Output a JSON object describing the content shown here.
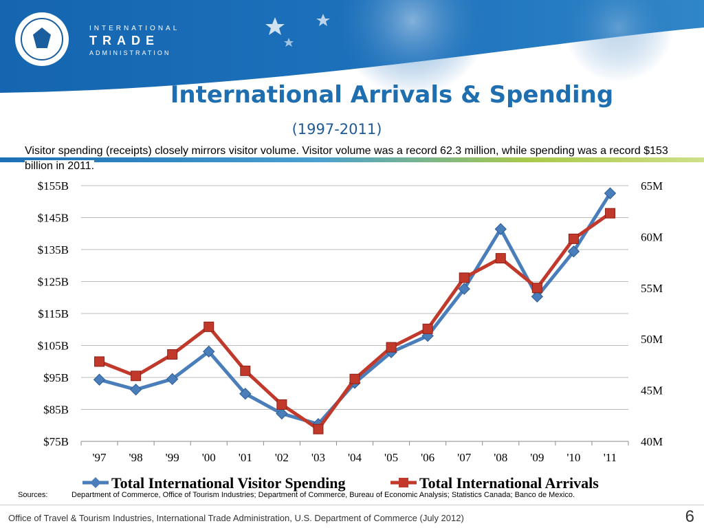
{
  "header": {
    "org_line1": "INTERNATIONAL",
    "org_line2": "TRADE",
    "org_line3": "ADMINISTRATION"
  },
  "colors": {
    "spending": "#4a7ebb",
    "arrivals": "#c0392b",
    "title": "#1f6fb0"
  },
  "slide": {
    "title": "International Arrivals & Spending",
    "subtitle": "(1997-2011)",
    "description": "Visitor spending (receipts) closely mirrors visitor volume.   Visitor volume was a record 62.3 million, while spending was a record $153 billion in 2011.",
    "sources_label": "Sources:",
    "sources_text": "Department of Commerce, Office of Tourism Industries; Department of Commerce, Bureau of Economic Analysis; Statistics Canada; Banco de Mexico.",
    "footer": "Office of Travel & Tourism Industries, International Trade Administration, U.S. Department of Commerce (July 2012)",
    "page_number": "6"
  },
  "chart_data": {
    "type": "line",
    "x": [
      "'97",
      "'98",
      "'99",
      "'00",
      "'01",
      "'02",
      "'03",
      "'04",
      "'05",
      "'06",
      "'07",
      "'08",
      "'09",
      "'10",
      "'11"
    ],
    "left_axis": {
      "ticks": [
        "$155B",
        "$145B",
        "$135B",
        "$125B",
        "$115B",
        "$105B",
        "$95B",
        "$85B",
        "$75B"
      ],
      "range": [
        75,
        155
      ]
    },
    "right_axis": {
      "ticks": [
        "65M",
        "60M",
        "55M",
        "50M",
        "45M",
        "40M"
      ],
      "range": [
        40,
        65
      ]
    },
    "grid": true,
    "legend_position": "bottom",
    "series": [
      {
        "name": "Total International Visitor Spending",
        "axis": "left",
        "marker": "diamond",
        "values": [
          94.3,
          91.2,
          94.5,
          103.1,
          89.9,
          83.7,
          80.4,
          93.3,
          102.9,
          108.0,
          122.7,
          141.4,
          120.3,
          134.4,
          152.6
        ]
      },
      {
        "name": "Total International Arrivals",
        "axis": "right",
        "marker": "square",
        "values": [
          47.8,
          46.4,
          48.5,
          51.2,
          46.9,
          43.6,
          41.2,
          46.1,
          49.2,
          51.0,
          56.0,
          57.9,
          55.0,
          59.8,
          62.3
        ]
      }
    ]
  }
}
